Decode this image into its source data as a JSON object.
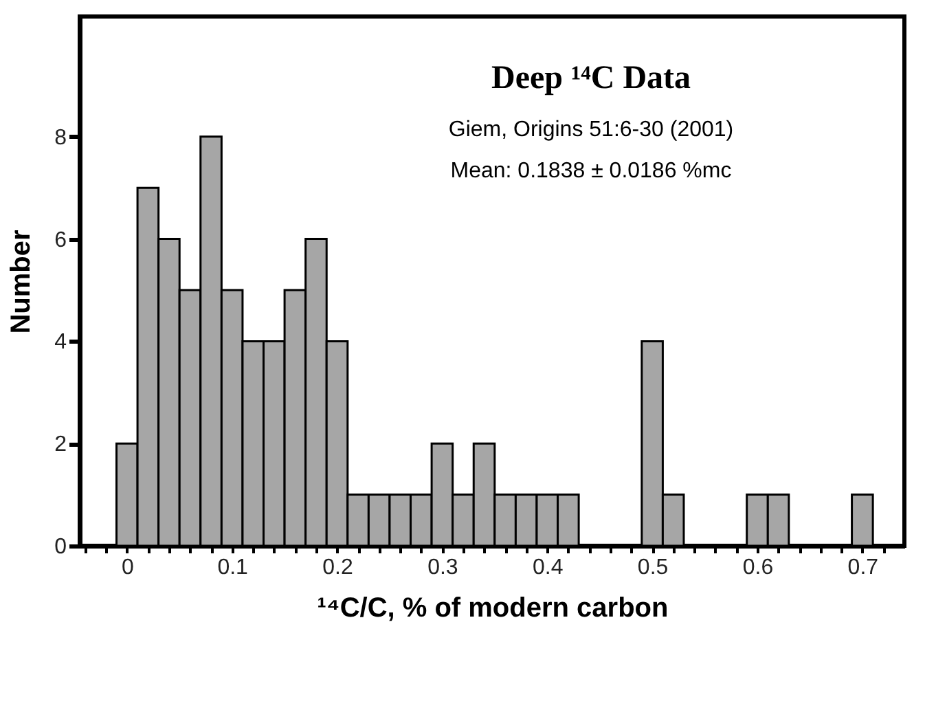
{
  "chart_data": {
    "type": "histogram",
    "title": "Deep ¹⁴C Data",
    "annotations": [
      "Giem, Origins 51:6-30 (2001)",
      "Mean: 0.1838 ± 0.0186 %mc"
    ],
    "xlabel": "¹⁴C/C, % of modern carbon",
    "ylabel": "Number",
    "bins": [
      -0.01,
      0.01,
      0.03,
      0.05,
      0.07,
      0.09,
      0.11,
      0.13,
      0.15,
      0.17,
      0.19,
      0.21,
      0.23,
      0.25,
      0.27,
      0.29,
      0.31,
      0.33,
      0.35,
      0.37,
      0.39,
      0.41,
      0.43,
      0.45,
      0.47,
      0.49,
      0.51,
      0.53,
      0.55,
      0.57,
      0.59,
      0.61,
      0.63,
      0.65,
      0.67,
      0.69,
      0.71
    ],
    "values": [
      2,
      7,
      6,
      5,
      8,
      5,
      4,
      4,
      5,
      6,
      4,
      1,
      1,
      1,
      1,
      2,
      1,
      2,
      1,
      1,
      1,
      1,
      0,
      0,
      0,
      4,
      1,
      0,
      0,
      0,
      1,
      1,
      0,
      0,
      0,
      1
    ],
    "color": "#a6a6a6",
    "xlim": [
      -0.045,
      0.74
    ],
    "ylim": [
      0,
      10.35
    ],
    "xticks": [
      {
        "value": -0.04,
        "label": null
      },
      {
        "value": -0.02,
        "label": null
      },
      0,
      {
        "value": 0.02,
        "label": null
      },
      {
        "value": 0.04,
        "label": null
      },
      {
        "value": 0.06,
        "label": null
      },
      {
        "value": 0.08,
        "label": null
      },
      0.1,
      {
        "value": 0.12,
        "label": null
      },
      {
        "value": 0.14,
        "label": null
      },
      {
        "value": 0.16,
        "label": null
      },
      {
        "value": 0.18,
        "label": null
      },
      0.2,
      {
        "value": 0.22,
        "label": null
      },
      {
        "value": 0.24,
        "label": null
      },
      {
        "value": 0.26,
        "label": null
      },
      {
        "value": 0.28,
        "label": null
      },
      0.3,
      {
        "value": 0.32,
        "label": null
      },
      {
        "value": 0.34,
        "label": null
      },
      {
        "value": 0.36,
        "label": null
      },
      {
        "value": 0.38,
        "label": null
      },
      0.4,
      {
        "value": 0.42,
        "label": null
      },
      {
        "value": 0.44,
        "label": null
      },
      {
        "value": 0.46,
        "label": null
      },
      {
        "value": 0.48,
        "label": null
      },
      0.5,
      {
        "value": 0.52,
        "label": null
      },
      {
        "value": 0.54,
        "label": null
      },
      {
        "value": 0.56,
        "label": null
      },
      {
        "value": 0.58,
        "label": null
      },
      0.6,
      {
        "value": 0.62,
        "label": null
      },
      {
        "value": 0.64,
        "label": null
      },
      {
        "value": 0.66,
        "label": null
      },
      {
        "value": 0.68,
        "label": null
      },
      0.7,
      {
        "value": 0.72,
        "label": null
      }
    ],
    "yticks": [
      0,
      2,
      4,
      6,
      8
    ],
    "grid": false
  }
}
